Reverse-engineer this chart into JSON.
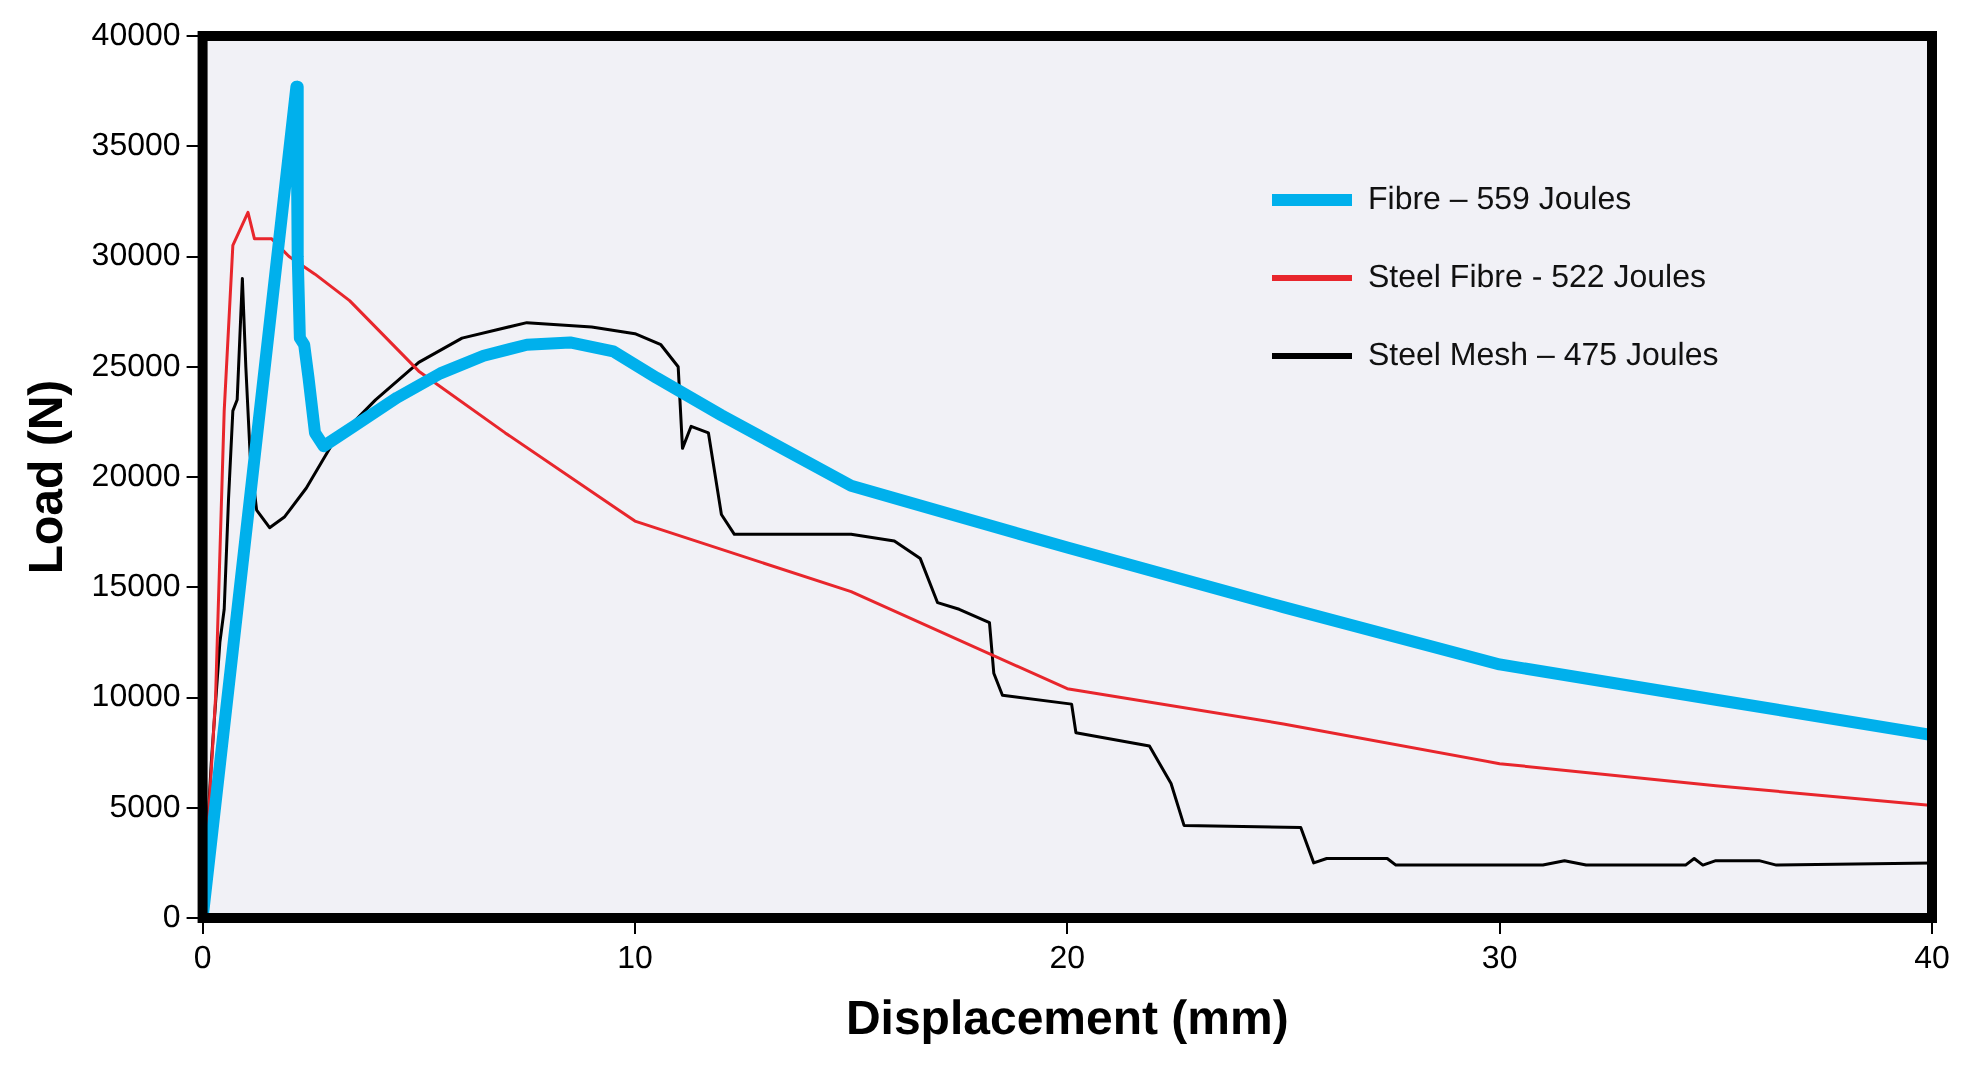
{
  "chart_data": {
    "type": "line",
    "xlabel": "Displacement (mm)",
    "ylabel": "Load (N)",
    "xlim": [
      0,
      40
    ],
    "xticks": [
      0,
      10,
      20,
      30,
      40
    ],
    "ylim": [
      0,
      40000
    ],
    "yticks": [
      0,
      5000,
      10000,
      15000,
      20000,
      25000,
      30000,
      35000,
      40000
    ],
    "grid": false,
    "legend": "top right",
    "marker": "none",
    "line_style": "solid",
    "series": [
      {
        "name": "Fibre – 559 Joules",
        "color": "#00b0ec",
        "x": [
          0,
          2.17,
          2.2,
          2.25,
          2.35,
          2.45,
          2.6,
          2.8,
          3.5,
          4.5,
          5.5,
          6.5,
          7.5,
          8.5,
          9.5,
          10.5,
          12,
          15,
          20,
          25,
          30,
          35,
          40
        ],
        "values": [
          0,
          37700,
          30000,
          26300,
          26000,
          24500,
          22000,
          21400,
          22300,
          23600,
          24700,
          25500,
          26000,
          26100,
          25700,
          24500,
          22800,
          19600,
          16800,
          14100,
          11500,
          9900,
          8300
        ]
      },
      {
        "name": "Steel Fibre - 522 Joules",
        "color": "#e8262c",
        "x": [
          0,
          0.3,
          0.5,
          0.7,
          1.05,
          1.2,
          1.6,
          2,
          2.6,
          3.4,
          5,
          7,
          10,
          15,
          20,
          25,
          30,
          35,
          40
        ],
        "values": [
          0,
          10000,
          23000,
          30500,
          32000,
          30800,
          30800,
          30000,
          29200,
          28000,
          24800,
          22000,
          18000,
          14800,
          10400,
          8800,
          7000,
          6000,
          5100
        ]
      },
      {
        "name": "Steel Mesh – 475 Joules",
        "color": "#000000",
        "x": [
          0,
          0.2,
          0.4,
          0.5,
          0.6,
          0.7,
          0.8,
          0.92,
          1.0,
          1.1,
          1.25,
          1.55,
          1.9,
          2.4,
          3,
          4,
          5,
          6,
          7.5,
          9,
          10,
          10.6,
          11,
          11.1,
          11.3,
          11.7,
          12,
          12.3,
          13,
          15,
          16,
          16.6,
          17,
          17.5,
          18.2,
          18.3,
          18.5,
          20.1,
          20.2,
          21.9,
          22.4,
          22.7,
          25.4,
          25.7,
          26,
          27.4,
          27.6,
          31,
          31.5,
          32,
          34.3,
          34.5,
          34.7,
          35,
          36,
          36.4,
          40
        ],
        "values": [
          0,
          7000,
          12500,
          14000,
          19000,
          23000,
          23500,
          29000,
          25000,
          21000,
          18500,
          17700,
          18200,
          19500,
          21500,
          23500,
          25200,
          26300,
          27000,
          26800,
          26500,
          26000,
          25000,
          21300,
          22300,
          22000,
          18300,
          17400,
          17400,
          17400,
          17100,
          16300,
          14300,
          14000,
          13400,
          11100,
          10100,
          9700,
          8400,
          7800,
          6100,
          4200,
          4100,
          2500,
          2700,
          2700,
          2400,
          2400,
          2600,
          2400,
          2400,
          2700,
          2400,
          2600,
          2600,
          2400,
          2500
        ]
      }
    ]
  }
}
